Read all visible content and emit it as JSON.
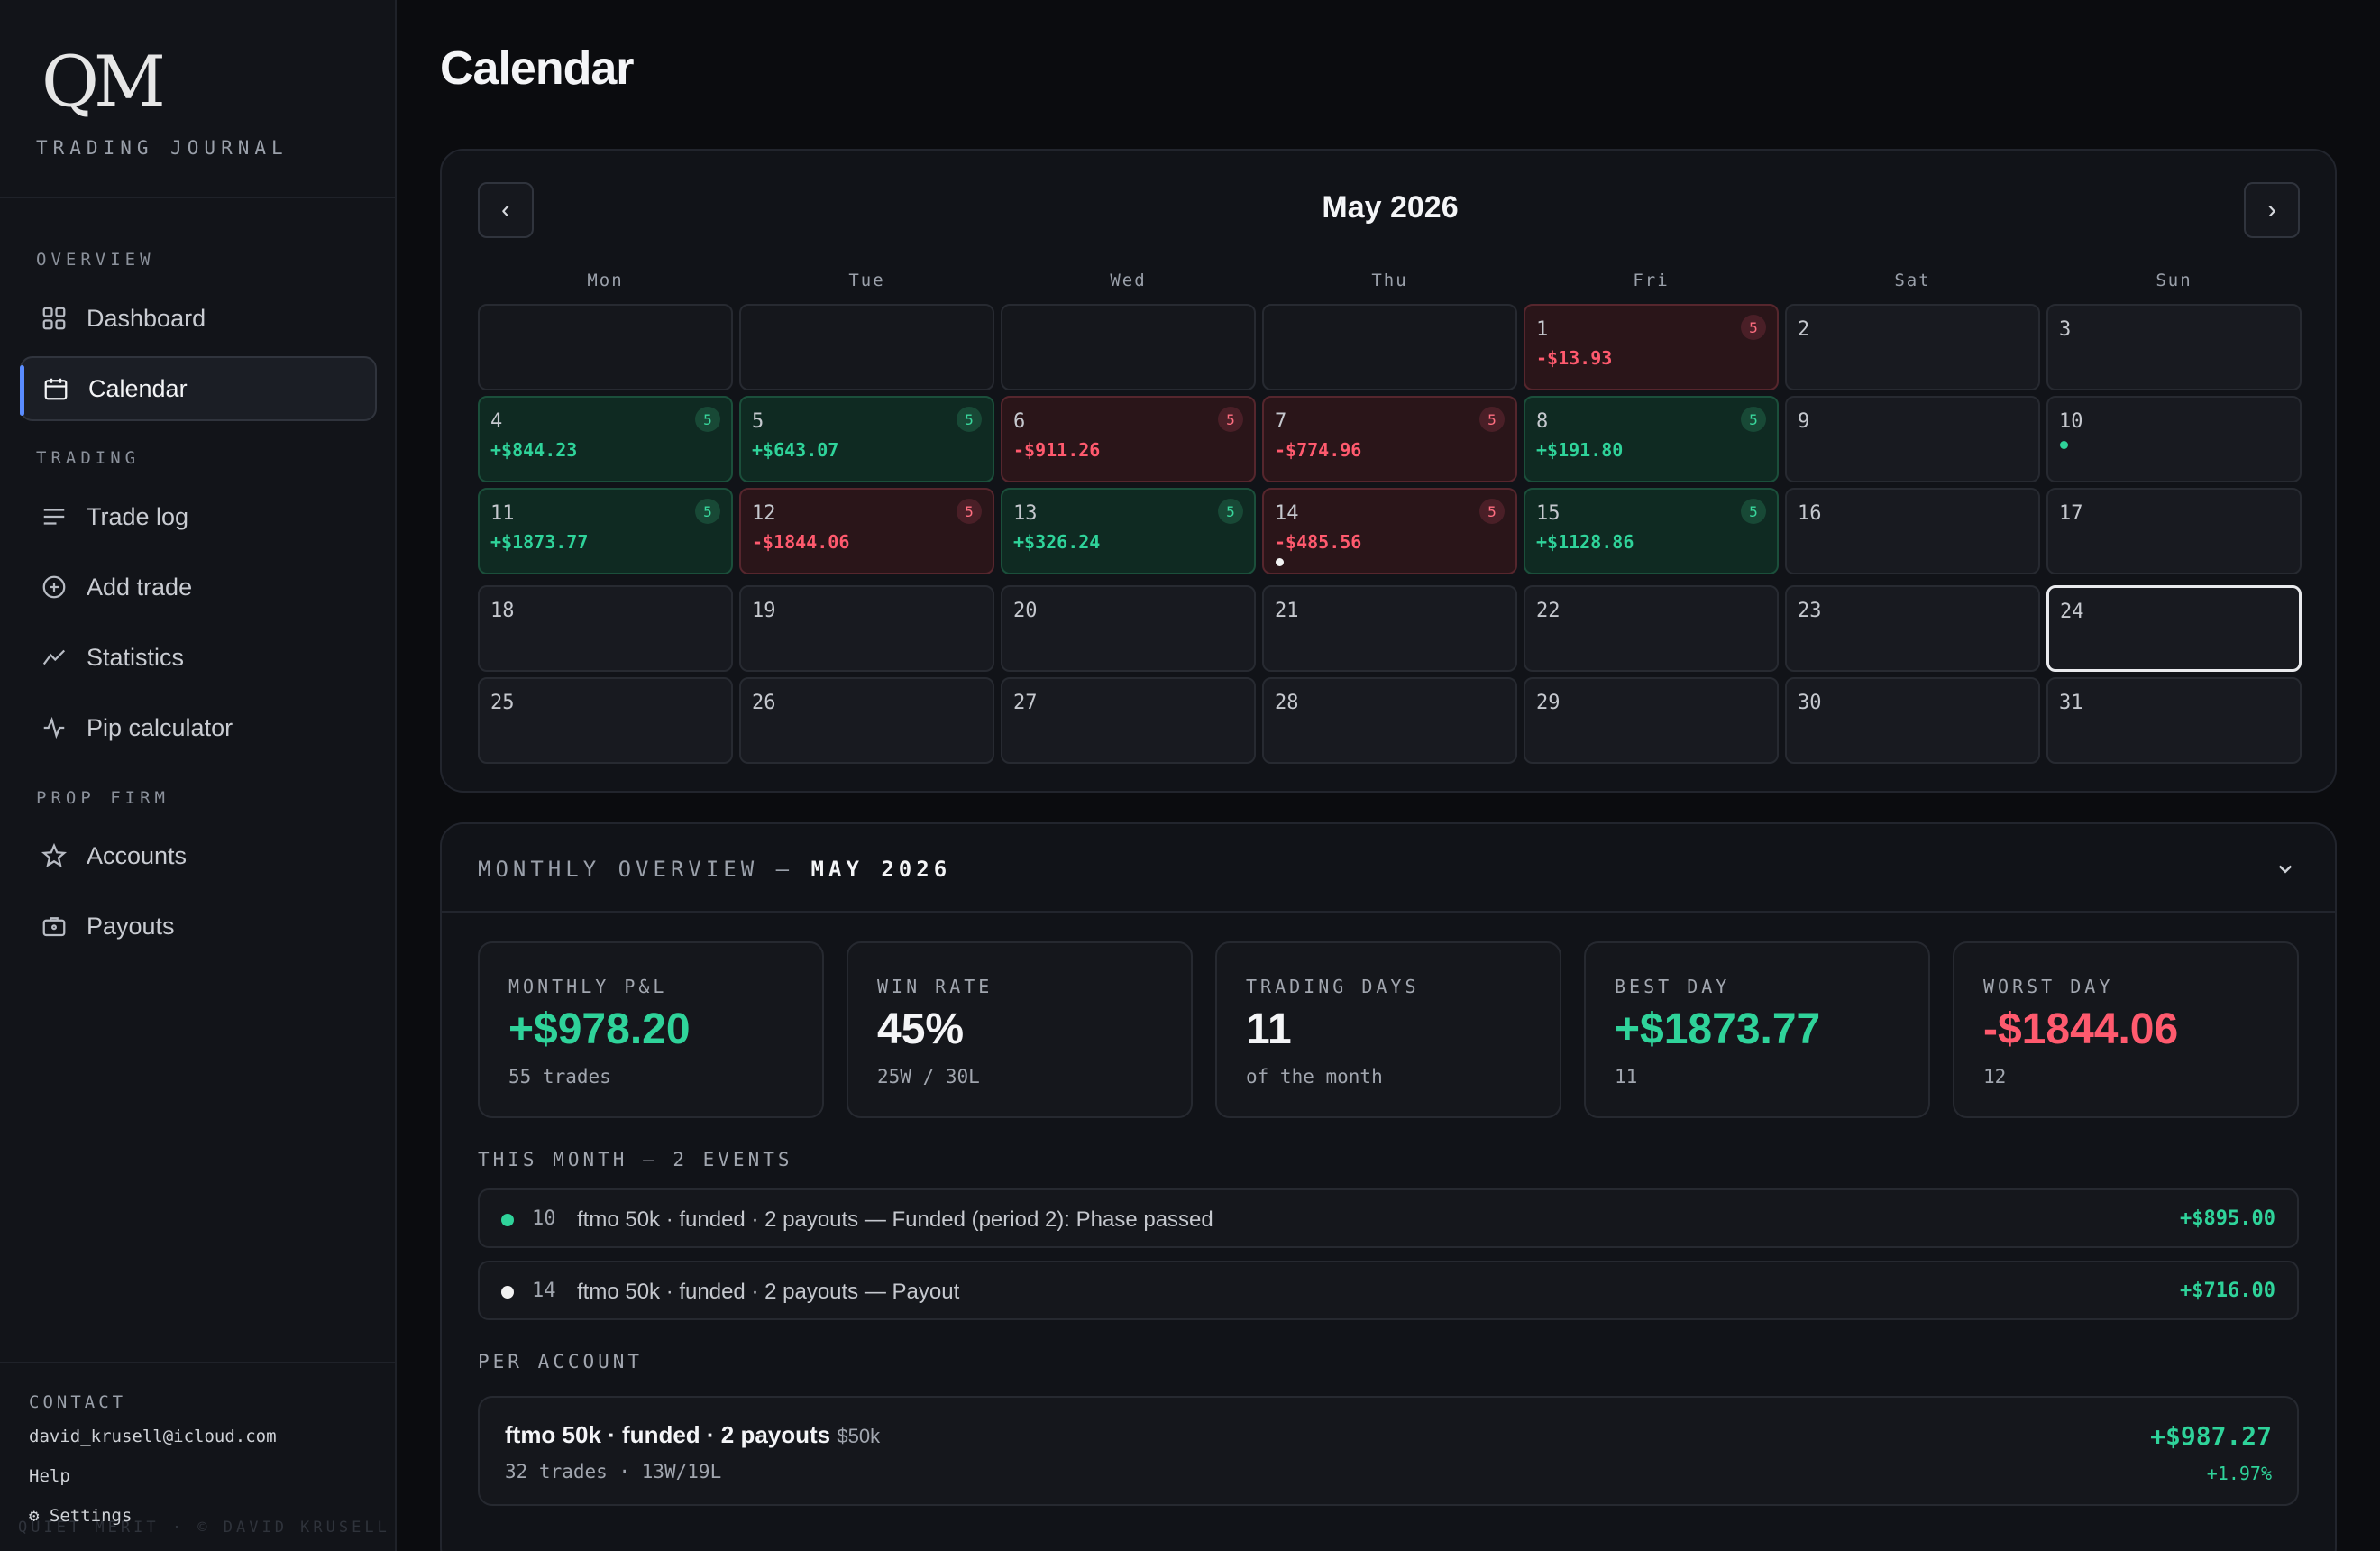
{
  "brand": {
    "logo": "QM",
    "subtitle": "TRADING JOURNAL"
  },
  "nav": {
    "sections": {
      "overview": "OVERVIEW",
      "trading": "TRADING",
      "prop_firm": "PROP FIRM"
    },
    "items": [
      {
        "label": "Dashboard",
        "icon": "grid-icon"
      },
      {
        "label": "Calendar",
        "icon": "calendar-icon",
        "active": true
      },
      {
        "label": "Trade log",
        "icon": "list-icon"
      },
      {
        "label": "Add trade",
        "icon": "plus-circle-icon"
      },
      {
        "label": "Statistics",
        "icon": "chart-line-icon"
      },
      {
        "label": "Pip calculator",
        "icon": "pulse-icon"
      },
      {
        "label": "Accounts",
        "icon": "star-icon"
      },
      {
        "label": "Payouts",
        "icon": "briefcase-icon"
      }
    ]
  },
  "footer": {
    "contact_label": "CONTACT",
    "email": "david_krusell@icloud.com",
    "help": "Help",
    "settings": "⚙ Settings",
    "copyright": "QUIET MERIT · © DAVID KRUSELL"
  },
  "page": {
    "title": "Calendar"
  },
  "calendar": {
    "month": "May 2026",
    "prev": "‹",
    "next": "›",
    "weekdays": [
      "Mon",
      "Tue",
      "Wed",
      "Thu",
      "Fri",
      "Sat",
      "Sun"
    ],
    "weeks": [
      [
        null,
        null,
        null,
        null,
        {
          "day": "1",
          "pnl": "-$13.93",
          "count": "5",
          "status": "neg"
        },
        {
          "day": "2"
        },
        {
          "day": "3"
        }
      ],
      [
        {
          "day": "4",
          "pnl": "+$844.23",
          "count": "5",
          "status": "pos"
        },
        {
          "day": "5",
          "pnl": "+$643.07",
          "count": "5",
          "status": "pos"
        },
        {
          "day": "6",
          "pnl": "-$911.26",
          "count": "5",
          "status": "neg"
        },
        {
          "day": "7",
          "pnl": "-$774.96",
          "count": "5",
          "status": "neg"
        },
        {
          "day": "8",
          "pnl": "+$191.80",
          "count": "5",
          "status": "pos"
        },
        {
          "day": "9"
        },
        {
          "day": "10",
          "event_dot": "#2fd39a"
        }
      ],
      [
        {
          "day": "11",
          "pnl": "+$1873.77",
          "count": "5",
          "status": "pos"
        },
        {
          "day": "12",
          "pnl": "-$1844.06",
          "count": "5",
          "status": "neg"
        },
        {
          "day": "13",
          "pnl": "+$326.24",
          "count": "5",
          "status": "pos"
        },
        {
          "day": "14",
          "pnl": "-$485.56",
          "count": "5",
          "status": "neg",
          "event_dot": "#f2f2f2"
        },
        {
          "day": "15",
          "pnl": "+$1128.86",
          "count": "5",
          "status": "pos"
        },
        {
          "day": "16"
        },
        {
          "day": "17"
        }
      ],
      [
        {
          "day": "18"
        },
        {
          "day": "19"
        },
        {
          "day": "20"
        },
        {
          "day": "21"
        },
        {
          "day": "22"
        },
        {
          "day": "23"
        },
        {
          "day": "24",
          "today": true
        }
      ],
      [
        {
          "day": "25"
        },
        {
          "day": "26"
        },
        {
          "day": "27"
        },
        {
          "day": "28"
        },
        {
          "day": "29"
        },
        {
          "day": "30"
        },
        {
          "day": "31"
        }
      ]
    ]
  },
  "overview": {
    "title_prefix": "MONTHLY OVERVIEW — ",
    "title_month": "MAY 2026",
    "stats": [
      {
        "key": "MONTHLY P&L",
        "value": "+$978.20",
        "sub": "55 trades",
        "tone": "pos"
      },
      {
        "key": "WIN RATE",
        "value": "45%",
        "sub": "25W / 30L",
        "tone": ""
      },
      {
        "key": "TRADING DAYS",
        "value": "11",
        "sub": "of the month",
        "tone": ""
      },
      {
        "key": "BEST DAY",
        "value": "+$1873.77",
        "sub": "11",
        "tone": "pos"
      },
      {
        "key": "WORST DAY",
        "value": "-$1844.06",
        "sub": "12",
        "tone": "neg"
      }
    ],
    "events_heading": "THIS MONTH — 2 EVENTS",
    "events": [
      {
        "day": "10",
        "text": "ftmo 50k · funded · 2 payouts — Funded (period 2): Phase passed",
        "amount": "+$895.00",
        "dot": "#2fd39a"
      },
      {
        "day": "14",
        "text": "ftmo 50k · funded · 2 payouts — Payout",
        "amount": "+$716.00",
        "dot": "#f2f2f2"
      }
    ],
    "per_account_heading": "PER ACCOUNT",
    "accounts": [
      {
        "name": "ftmo 50k · funded · 2 payouts",
        "size": "$50k",
        "meta": "32 trades · 13W/19L",
        "pnl": "+$987.27",
        "pct": "+1.97%"
      }
    ]
  }
}
